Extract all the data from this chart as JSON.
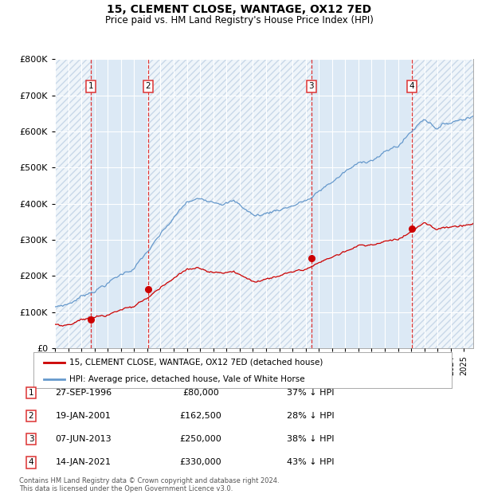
{
  "title": "15, CLEMENT CLOSE, WANTAGE, OX12 7ED",
  "subtitle": "Price paid vs. HM Land Registry's House Price Index (HPI)",
  "ylim": [
    0,
    800000
  ],
  "yticks": [
    0,
    100000,
    200000,
    300000,
    400000,
    500000,
    600000,
    700000,
    800000
  ],
  "ytick_labels": [
    "£0",
    "£100K",
    "£200K",
    "£300K",
    "£400K",
    "£500K",
    "£600K",
    "£700K",
    "£800K"
  ],
  "xlim_start": 1994.0,
  "xlim_end": 2025.7,
  "background_color": "#ffffff",
  "plot_bg_color": "#dce9f5",
  "grid_color": "#ffffff",
  "red_line_color": "#cc0000",
  "blue_line_color": "#6699cc",
  "dashed_line_color": "#dd3333",
  "transactions": [
    {
      "num": 1,
      "date_dec": 1996.74,
      "price": 80000,
      "label": "27-SEP-1996",
      "price_str": "£80,000",
      "hpi_str": "37% ↓ HPI"
    },
    {
      "num": 2,
      "date_dec": 2001.05,
      "price": 162500,
      "label": "19-JAN-2001",
      "price_str": "£162,500",
      "hpi_str": "28% ↓ HPI"
    },
    {
      "num": 3,
      "date_dec": 2013.43,
      "price": 250000,
      "label": "07-JUN-2013",
      "price_str": "£250,000",
      "hpi_str": "38% ↓ HPI"
    },
    {
      "num": 4,
      "date_dec": 2021.04,
      "price": 330000,
      "label": "14-JAN-2021",
      "price_str": "£330,000",
      "hpi_str": "43% ↓ HPI"
    }
  ],
  "legend1": "15, CLEMENT CLOSE, WANTAGE, OX12 7ED (detached house)",
  "legend2": "HPI: Average price, detached house, Vale of White Horse",
  "footnote": "Contains HM Land Registry data © Crown copyright and database right 2024.\nThis data is licensed under the Open Government Licence v3.0."
}
